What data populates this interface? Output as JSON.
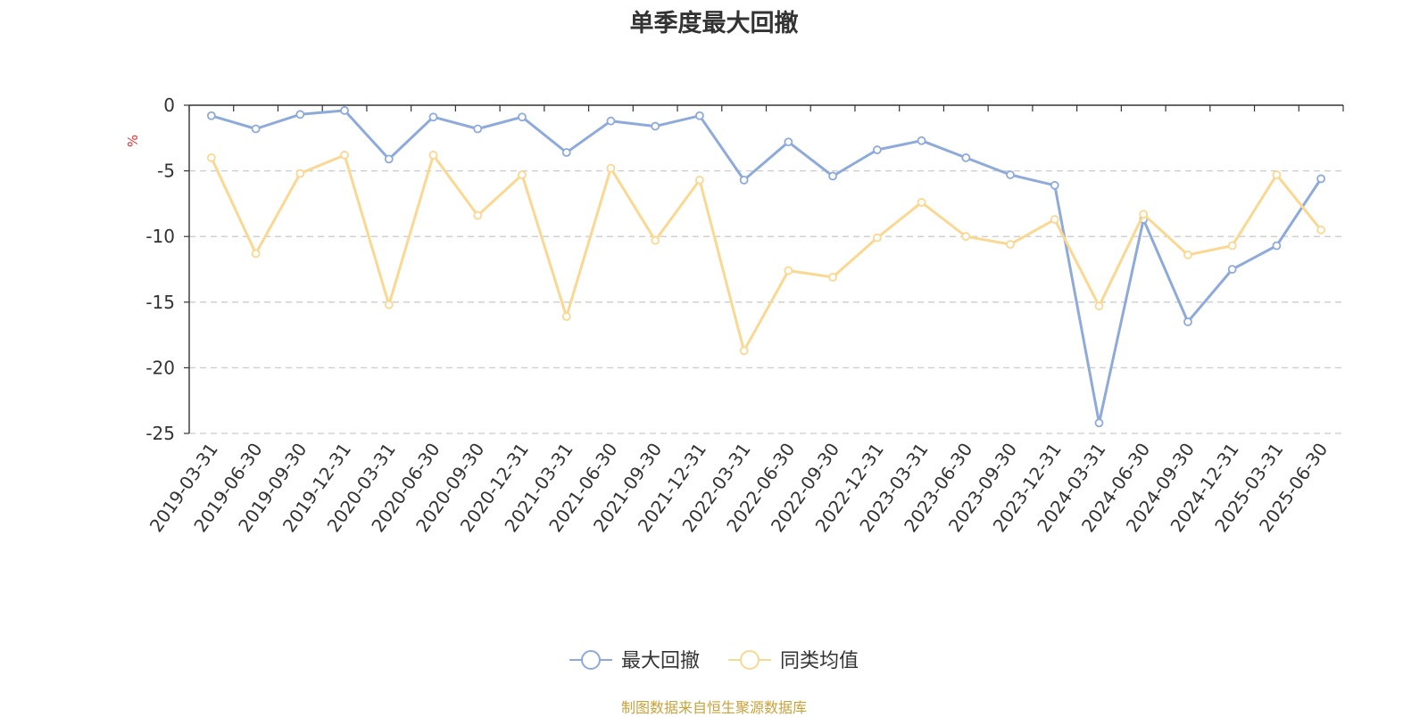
{
  "chart_data": {
    "type": "line",
    "title": "单季度最大回撤",
    "ylabel": "%",
    "ylim": [
      -25,
      0
    ],
    "yticks": [
      0,
      -5,
      -10,
      -15,
      -20,
      -25
    ],
    "grid": true,
    "legend_position": "bottom-center",
    "categories": [
      "2019-03-31",
      "2019-06-30",
      "2019-09-30",
      "2019-12-31",
      "2020-03-31",
      "2020-06-30",
      "2020-09-30",
      "2020-12-31",
      "2021-03-31",
      "2021-06-30",
      "2021-09-30",
      "2021-12-31",
      "2022-03-31",
      "2022-06-30",
      "2022-09-30",
      "2022-12-31",
      "2023-03-31",
      "2023-06-30",
      "2023-09-30",
      "2023-12-31",
      "2024-03-31",
      "2024-06-30",
      "2024-09-30",
      "2024-12-31",
      "2025-03-31",
      "2025-06-30"
    ],
    "series": [
      {
        "name": "最大回撤",
        "color": "#8eaadb",
        "values": [
          -0.8,
          -1.8,
          -0.7,
          -0.4,
          -4.1,
          -0.9,
          -1.8,
          -0.9,
          -3.6,
          -1.2,
          -1.6,
          -0.8,
          -5.7,
          -2.8,
          -5.4,
          -3.4,
          -2.7,
          -4.0,
          -5.3,
          -6.1,
          -24.2,
          -8.7,
          -16.5,
          -12.5,
          -10.7,
          -5.6
        ]
      },
      {
        "name": "同类均值",
        "color": "#fbd892",
        "values": [
          -4.0,
          -11.3,
          -5.2,
          -3.8,
          -15.2,
          -3.8,
          -8.4,
          -5.3,
          -16.1,
          -4.8,
          -10.3,
          -5.7,
          -18.7,
          -12.6,
          -13.1,
          -10.1,
          -7.4,
          -10.0,
          -10.6,
          -8.7,
          -15.3,
          -8.3,
          -11.4,
          -10.7,
          -5.3,
          -9.5
        ]
      }
    ]
  },
  "source_text": "制图数据来自恒生聚源数据库"
}
